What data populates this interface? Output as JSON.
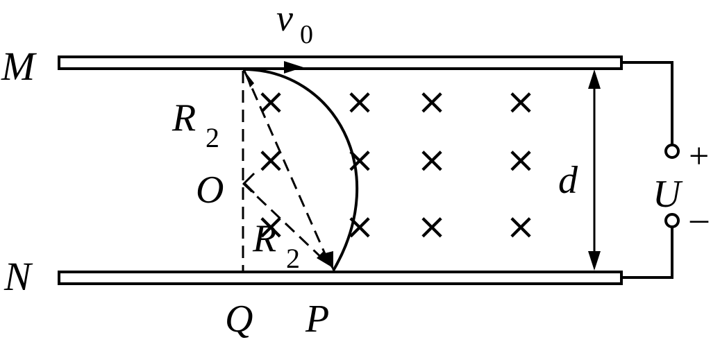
{
  "labels": {
    "plate_top": "M",
    "plate_bottom": "N",
    "velocity_symbol": "v",
    "velocity_subscript": "0",
    "radius_symbol": "R",
    "radius_subscript": "2",
    "center": "O",
    "point_q": "Q",
    "point_p": "P",
    "gap": "d",
    "voltage": "U",
    "plus": "+",
    "minus": "–"
  },
  "field": {
    "symbol": "×",
    "direction": "into-page",
    "rows": 3,
    "columns": 4
  },
  "colors": {
    "ink": "#000000",
    "background": "#ffffff"
  }
}
